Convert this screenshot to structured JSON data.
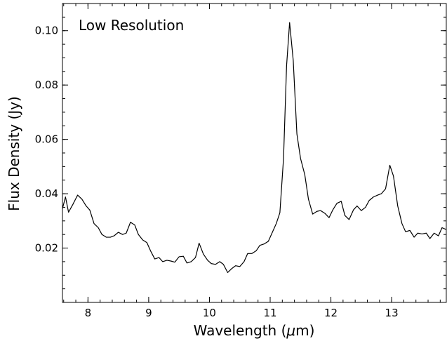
{
  "chart_data": {
    "type": "line",
    "title": "",
    "annotation": "Low Resolution",
    "xlabel_prefix": "Wavelength (",
    "xlabel_mu": "μ",
    "xlabel_suffix": "m)",
    "ylabel": "Flux Density (Jy)",
    "xlim": [
      7.58,
      13.9
    ],
    "ylim": [
      0.0,
      0.11
    ],
    "x_ticks": [
      8,
      9,
      10,
      11,
      12,
      13
    ],
    "x_tick_labels": [
      "8",
      "9",
      "10",
      "11",
      "12",
      "13"
    ],
    "x_minor_step": 0.2,
    "y_ticks": [
      0.02,
      0.04,
      0.06,
      0.08,
      0.1
    ],
    "y_tick_labels": [
      "0.02",
      "0.04",
      "0.06",
      "0.08",
      "0.10"
    ],
    "y_minor_step": 0.005,
    "grid": false,
    "line_color": "#000000",
    "series": [
      {
        "x": [
          7.58,
          7.63,
          7.68,
          7.75,
          7.83,
          7.9,
          7.97,
          8.03,
          8.1,
          8.17,
          8.23,
          8.3,
          8.37,
          8.43,
          8.5,
          8.57,
          8.63,
          8.7,
          8.77,
          8.83,
          8.9,
          8.97,
          9.03,
          9.1,
          9.17,
          9.23,
          9.3,
          9.37,
          9.43,
          9.5,
          9.57,
          9.63,
          9.7,
          9.77,
          9.83,
          9.9,
          9.97,
          10.03,
          10.1,
          10.17,
          10.23,
          10.3,
          10.37,
          10.43,
          10.5,
          10.57,
          10.63,
          10.7,
          10.77,
          10.83,
          10.9,
          10.97,
          11.03,
          11.1,
          11.16,
          11.22,
          11.27,
          11.32,
          11.38,
          11.44,
          11.5,
          11.57,
          11.63,
          11.7,
          11.77,
          11.83,
          11.9,
          11.97,
          12.03,
          12.1,
          12.17,
          12.23,
          12.3,
          12.37,
          12.43,
          12.5,
          12.57,
          12.63,
          12.7,
          12.77,
          12.83,
          12.9,
          12.97,
          13.03,
          13.1,
          13.17,
          13.23,
          13.3,
          13.37,
          13.43,
          13.5,
          13.57,
          13.63,
          13.7,
          13.77,
          13.83,
          13.9
        ],
        "y": [
          0.0345,
          0.0388,
          0.0332,
          0.036,
          0.0395,
          0.038,
          0.0355,
          0.034,
          0.029,
          0.0275,
          0.025,
          0.024,
          0.024,
          0.0245,
          0.0258,
          0.025,
          0.0255,
          0.0295,
          0.0285,
          0.025,
          0.023,
          0.022,
          0.019,
          0.016,
          0.0165,
          0.015,
          0.0155,
          0.0152,
          0.0148,
          0.0168,
          0.017,
          0.0145,
          0.015,
          0.0165,
          0.0218,
          0.0178,
          0.0155,
          0.0143,
          0.014,
          0.015,
          0.014,
          0.011,
          0.0125,
          0.0135,
          0.0132,
          0.015,
          0.018,
          0.018,
          0.019,
          0.021,
          0.0215,
          0.0225,
          0.0255,
          0.029,
          0.033,
          0.053,
          0.087,
          0.103,
          0.089,
          0.062,
          0.053,
          0.047,
          0.038,
          0.0325,
          0.0335,
          0.0338,
          0.0328,
          0.0312,
          0.034,
          0.0365,
          0.0372,
          0.032,
          0.0305,
          0.034,
          0.0355,
          0.0338,
          0.035,
          0.0375,
          0.0388,
          0.0395,
          0.04,
          0.0418,
          0.0505,
          0.0465,
          0.0355,
          0.029,
          0.026,
          0.0265,
          0.024,
          0.0255,
          0.0252,
          0.0255,
          0.0235,
          0.0255,
          0.0245,
          0.0275,
          0.0268
        ]
      }
    ]
  }
}
